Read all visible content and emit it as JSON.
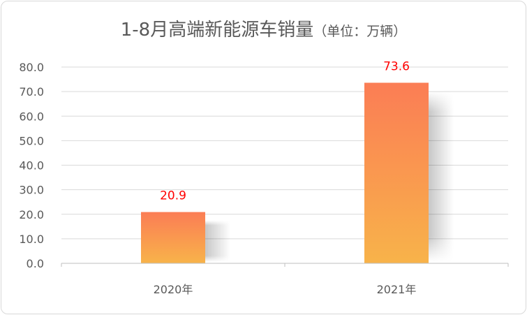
{
  "chart_data": {
    "type": "bar",
    "title": "1-8月高端新能源车销量",
    "unit_label": "（单位：万辆）",
    "categories": [
      "2020年",
      "2021年"
    ],
    "values": [
      20.9,
      73.6
    ],
    "data_labels": [
      "20.9",
      "73.6"
    ],
    "ylim": [
      0,
      80
    ],
    "yticks": [
      "0.0",
      "10.0",
      "20.0",
      "30.0",
      "40.0",
      "50.0",
      "60.0",
      "70.0",
      "80.0"
    ],
    "xlabel": "",
    "ylabel": "",
    "grid": true,
    "legend": "none"
  },
  "colors": {
    "bar_top": "#fb7d55",
    "bar_bottom": "#f8b34a",
    "label": "#ff0000",
    "grid": "#d9d9d9",
    "text": "#595959"
  }
}
